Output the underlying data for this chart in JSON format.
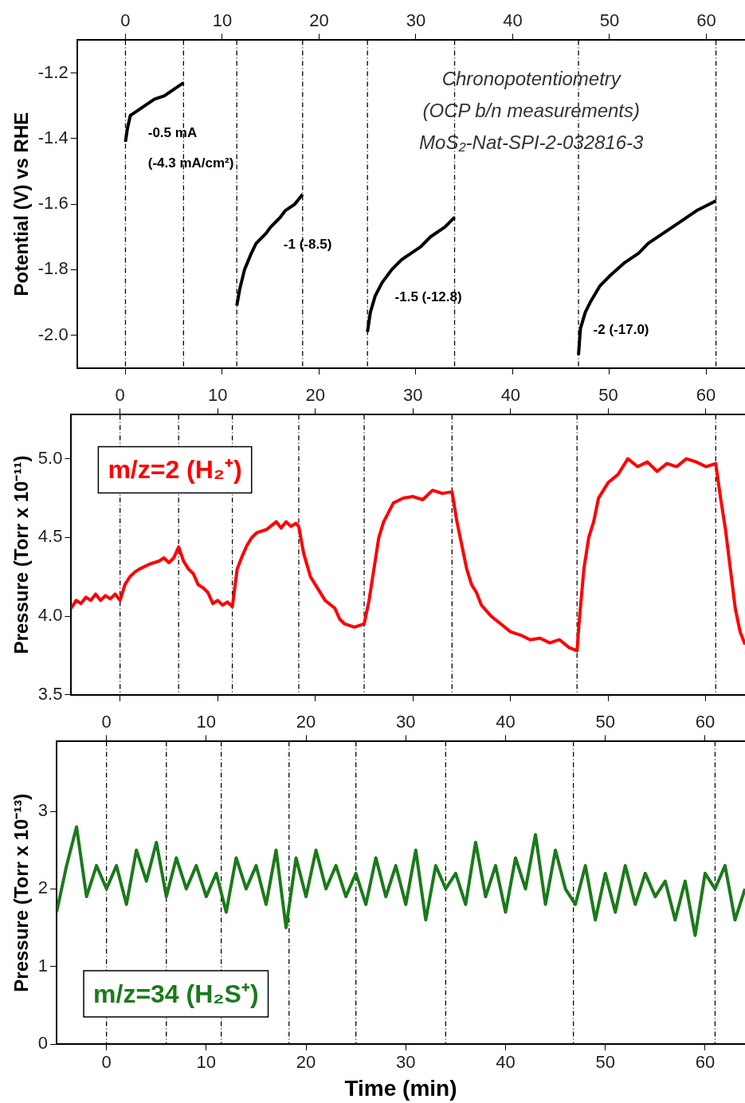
{
  "chart_data": [
    {
      "type": "line",
      "ylabel": "Potential (V) vs RHE",
      "xlim": [
        -5,
        64
      ],
      "xticks": [
        0,
        10,
        20,
        30,
        40,
        50,
        60
      ],
      "x2lim": [
        -5,
        64
      ],
      "x2ticks": [
        0,
        10,
        20,
        30,
        40,
        50,
        60
      ],
      "ylim": [
        -2.1,
        -1.1
      ],
      "yticks": [
        {
          "value": -2,
          "label": "-2.0"
        },
        {
          "value": -1.8,
          "label": "-1.8"
        },
        {
          "value": -1.6,
          "label": "-1.6"
        },
        {
          "value": -1.4,
          "label": "-1.4"
        },
        {
          "value": -1.2,
          "label": "-1.2"
        }
      ],
      "tick_labels": "y",
      "marker": "none",
      "grid": false,
      "legend": false,
      "series": [
        {
          "color": "#000000",
          "x": [
            0,
            0.2,
            0.5,
            1,
            2,
            3,
            4,
            5,
            6,
            6.01,
            11.5,
            11.8,
            12.3,
            13,
            13.5,
            14.5,
            15,
            16,
            16.5,
            17.5,
            18.3,
            18.31,
            25,
            25.3,
            25.8,
            26.5,
            27.5,
            28.5,
            29.5,
            30.5,
            31.5,
            33,
            34,
            34.01,
            46.8,
            47,
            47.5,
            48,
            49,
            50,
            51.5,
            53,
            54,
            55.5,
            57,
            59,
            61
          ],
          "values": [
            -1.41,
            -1.37,
            -1.33,
            -1.32,
            -1.3,
            -1.28,
            -1.27,
            -1.25,
            -1.23,
            null,
            -1.91,
            -1.86,
            -1.8,
            -1.75,
            -1.72,
            -1.69,
            -1.67,
            -1.64,
            -1.62,
            -1.6,
            -1.57,
            null,
            -1.99,
            -1.93,
            -1.88,
            -1.84,
            -1.8,
            -1.77,
            -1.75,
            -1.73,
            -1.7,
            -1.67,
            -1.64,
            null,
            -2.06,
            -1.98,
            -1.93,
            -1.9,
            -1.85,
            -1.82,
            -1.78,
            -1.75,
            -1.72,
            -1.69,
            -1.66,
            -1.62,
            -1.59
          ]
        }
      ],
      "ref_lines": [
        {
          "axis": "x",
          "value": 0,
          "line_style": "dashed",
          "color": "#000000"
        },
        {
          "axis": "x",
          "value": 6,
          "line_style": "dashed",
          "color": "#000000"
        },
        {
          "axis": "x",
          "value": 11.5,
          "line_style": "dashed",
          "color": "#000000"
        },
        {
          "axis": "x",
          "value": 18.3,
          "line_style": "dashed",
          "color": "#000000"
        },
        {
          "axis": "x",
          "value": 25,
          "line_style": "dashed",
          "color": "#000000"
        },
        {
          "axis": "x",
          "value": 34,
          "line_style": "dashed",
          "color": "#000000"
        },
        {
          "axis": "x",
          "value": 46.8,
          "line_style": "dashed",
          "color": "#000000"
        },
        {
          "axis": "x",
          "value": 61,
          "line_style": "dashed",
          "color": "#000000"
        }
      ],
      "annotations": [
        "Chronopotentiometry",
        "(OCP b/n measurements)",
        "MoS₂-Nat-SPI-2-032816-3",
        {
          "text": "-0.5 mA",
          "x": 2,
          "y": -1.3
        },
        "(-4.3 mA/cm²)",
        {
          "text": "-1 (-8.5)",
          "x": 16,
          "y": -1.64
        },
        {
          "text": "-1.5 (-12.8)",
          "x": 27.5,
          "y": -1.8
        },
        {
          "text": "-2 (-17.0)",
          "x": 48,
          "y": -1.9
        }
      ]
    },
    {
      "type": "line",
      "ylabel": "Pressure (Torr x 10⁻¹¹)",
      "xlim": [
        -5,
        64
      ],
      "xticks": [
        0,
        10,
        20,
        30,
        40,
        50,
        60
      ],
      "x2lim": [
        -5,
        64
      ],
      "x2ticks": [
        0,
        10,
        20,
        30,
        40,
        50,
        60
      ],
      "ylim": [
        3.5,
        5.28
      ],
      "yticks": [
        3.5,
        {
          "value": 4,
          "label": "4.0"
        },
        4.5,
        {
          "value": 5,
          "label": "5.0"
        }
      ],
      "tick_labels": "y",
      "marker": "none",
      "grid": false,
      "legend": "top left",
      "series": [
        {
          "name": "m/z=2 (H₂⁺)",
          "color": "#ff0000",
          "x": [
            -5,
            -4.5,
            -4,
            -3.5,
            -3,
            -2.5,
            -2,
            -1.5,
            -1,
            -0.5,
            0,
            0.5,
            1,
            1.5,
            2,
            3,
            4,
            4.5,
            5,
            5.5,
            6,
            6.5,
            7,
            7.5,
            8,
            8.5,
            9,
            9.5,
            10,
            10.5,
            11,
            11.5,
            12,
            12.5,
            13,
            13.5,
            14,
            15,
            16,
            16.5,
            17,
            17.5,
            18,
            18.3,
            18.8,
            19.5,
            20,
            21,
            22,
            22.5,
            23,
            24,
            25,
            25.5,
            26,
            26.5,
            27,
            28,
            29,
            30,
            31,
            32,
            33,
            34,
            34.5,
            35,
            35.5,
            36,
            36.5,
            37,
            38,
            39,
            40,
            41,
            42,
            43,
            44,
            45,
            46,
            46.8,
            47,
            47.5,
            48,
            48.5,
            49,
            49.5,
            50,
            51,
            51.5,
            52,
            53,
            54,
            55,
            56,
            57,
            58,
            59,
            60,
            61,
            61.5,
            62,
            62.5,
            63,
            63.5,
            64
          ],
          "values": [
            4.05,
            4.1,
            4.08,
            4.12,
            4.1,
            4.14,
            4.1,
            4.13,
            4.11,
            4.14,
            4.1,
            4.2,
            4.25,
            4.28,
            4.3,
            4.33,
            4.35,
            4.37,
            4.34,
            4.37,
            4.44,
            4.35,
            4.3,
            4.27,
            4.2,
            4.18,
            4.15,
            4.08,
            4.1,
            4.07,
            4.09,
            4.06,
            4.3,
            4.38,
            4.45,
            4.5,
            4.53,
            4.55,
            4.6,
            4.56,
            4.6,
            4.57,
            4.59,
            4.57,
            4.4,
            4.25,
            4.2,
            4.1,
            4.05,
            3.98,
            3.95,
            3.93,
            3.95,
            4.1,
            4.3,
            4.5,
            4.6,
            4.72,
            4.75,
            4.76,
            4.74,
            4.8,
            4.78,
            4.79,
            4.6,
            4.45,
            4.3,
            4.2,
            4.15,
            4.07,
            4,
            3.95,
            3.9,
            3.88,
            3.85,
            3.86,
            3.83,
            3.85,
            3.8,
            3.78,
            3.95,
            4.3,
            4.5,
            4.6,
            4.75,
            4.8,
            4.85,
            4.9,
            4.95,
            5,
            4.95,
            4.98,
            4.92,
            4.97,
            4.95,
            5,
            4.98,
            4.95,
            4.97,
            4.75,
            4.55,
            4.3,
            4.05,
            3.9,
            3.82
          ]
        }
      ],
      "ref_lines": [
        {
          "axis": "x",
          "value": 0,
          "line_style": "dashed",
          "color": "#000000"
        },
        {
          "axis": "x",
          "value": 6,
          "line_style": "dashed",
          "color": "#000000"
        },
        {
          "axis": "x",
          "value": 11.5,
          "line_style": "dashed",
          "color": "#000000"
        },
        {
          "axis": "x",
          "value": 18.3,
          "line_style": "dashed",
          "color": "#000000"
        },
        {
          "axis": "x",
          "value": 25,
          "line_style": "dashed",
          "color": "#000000"
        },
        {
          "axis": "x",
          "value": 34,
          "line_style": "dashed",
          "color": "#000000"
        },
        {
          "axis": "x",
          "value": 46.8,
          "line_style": "dashed",
          "color": "#000000"
        },
        {
          "axis": "x",
          "value": 61,
          "line_style": "dashed",
          "color": "#000000"
        }
      ]
    },
    {
      "type": "line",
      "xlabel": "Time (min)",
      "ylabel": "Pressure (Torr x 10⁻¹³)",
      "xlim": [
        -5,
        64
      ],
      "xticks": [
        0,
        10,
        20,
        30,
        40,
        50,
        60
      ],
      "x2lim": [
        -5,
        64
      ],
      "x2ticks": [
        0,
        10,
        20,
        30,
        40,
        50,
        60
      ],
      "ylim": [
        0,
        3.9
      ],
      "yticks": [
        0,
        1,
        2,
        3
      ],
      "marker": "none",
      "grid": false,
      "legend": "bottom left",
      "series": [
        {
          "name": "m/z=34 (H₂S⁺)",
          "color": "#1a7a1a",
          "x": [
            -5,
            -4,
            -3,
            -2,
            -1,
            0,
            1,
            2,
            3,
            4,
            5,
            6,
            7,
            8,
            9,
            10,
            11,
            12,
            13,
            14,
            15,
            16,
            17,
            18,
            19,
            20,
            21,
            22,
            23,
            24,
            25,
            26,
            27,
            28,
            29,
            30,
            31,
            32,
            33,
            34,
            35,
            36,
            37,
            38,
            39,
            40,
            41,
            42,
            43,
            44,
            45,
            46,
            47,
            48,
            49,
            50,
            51,
            52,
            53,
            54,
            55,
            56,
            57,
            58,
            59,
            60,
            61,
            62,
            63,
            64
          ],
          "values": [
            1.7,
            2.3,
            2.8,
            1.9,
            2.3,
            2,
            2.3,
            1.8,
            2.5,
            2.1,
            2.6,
            1.9,
            2.4,
            2,
            2.3,
            1.9,
            2.2,
            1.7,
            2.4,
            2,
            2.3,
            1.8,
            2.5,
            1.5,
            2.4,
            1.9,
            2.5,
            2,
            2.3,
            1.9,
            2.2,
            1.8,
            2.4,
            1.9,
            2.3,
            1.8,
            2.5,
            1.6,
            2.3,
            2,
            2.2,
            1.8,
            2.6,
            1.9,
            2.3,
            1.7,
            2.4,
            2,
            2.7,
            1.8,
            2.5,
            2,
            1.8,
            2.3,
            1.6,
            2.2,
            1.7,
            2.3,
            1.8,
            2.2,
            1.9,
            2.1,
            1.6,
            2.1,
            1.4,
            2.2,
            2,
            2.3,
            1.6,
            2
          ]
        }
      ],
      "ref_lines": [
        {
          "axis": "x",
          "value": 0,
          "line_style": "dashed",
          "color": "#000000"
        },
        {
          "axis": "x",
          "value": 6,
          "line_style": "dashed",
          "color": "#000000"
        },
        {
          "axis": "x",
          "value": 11.5,
          "line_style": "dashed",
          "color": "#000000"
        },
        {
          "axis": "x",
          "value": 18.3,
          "line_style": "dashed",
          "color": "#000000"
        },
        {
          "axis": "x",
          "value": 25,
          "line_style": "dashed",
          "color": "#000000"
        },
        {
          "axis": "x",
          "value": 34,
          "line_style": "dashed",
          "color": "#000000"
        },
        {
          "axis": "x",
          "value": 46.8,
          "line_style": "dashed",
          "color": "#000000"
        },
        {
          "axis": "x",
          "value": 61,
          "line_style": "dashed",
          "color": "#000000"
        }
      ]
    }
  ]
}
